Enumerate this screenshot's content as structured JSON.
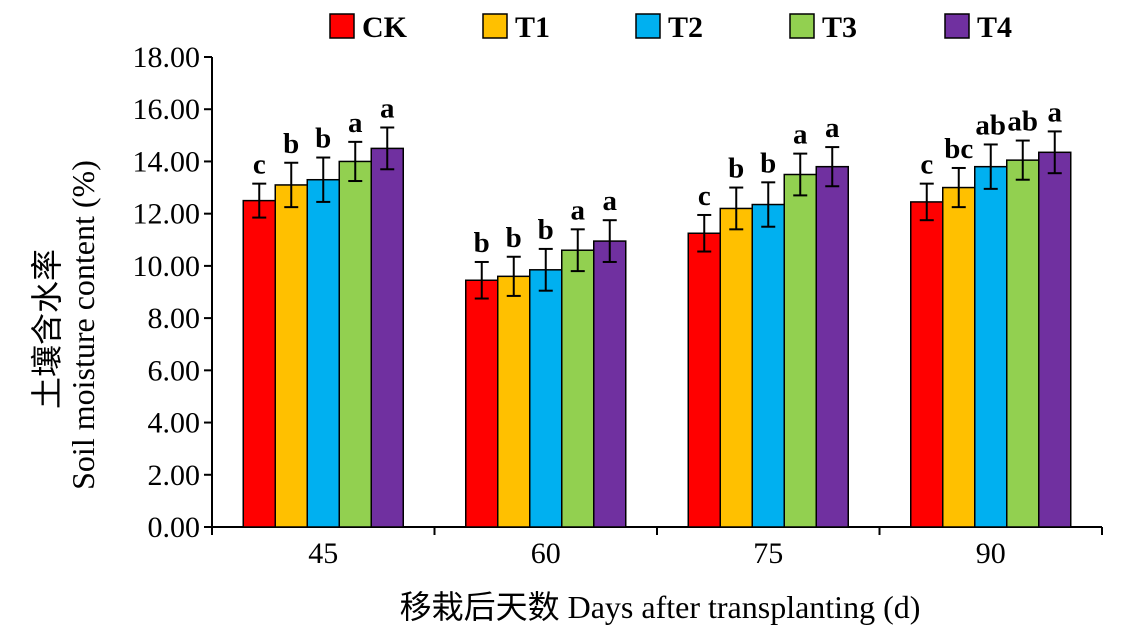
{
  "chart_data": {
    "type": "bar",
    "categories": [
      "45",
      "60",
      "75",
      "90"
    ],
    "series": [
      {
        "name": "CK",
        "color": "#ff0000",
        "values": [
          12.5,
          9.45,
          11.25,
          12.45
        ],
        "errors": [
          0.65,
          0.7,
          0.7,
          0.7
        ],
        "letters": [
          "c",
          "b",
          "c",
          "c"
        ]
      },
      {
        "name": "T1",
        "color": "#ffc000",
        "values": [
          13.1,
          9.6,
          12.2,
          13.0
        ],
        "errors": [
          0.85,
          0.75,
          0.8,
          0.75
        ],
        "letters": [
          "b",
          "b",
          "b",
          "bc"
        ]
      },
      {
        "name": "T2",
        "color": "#00b0f0",
        "values": [
          13.3,
          9.85,
          12.35,
          13.8
        ],
        "errors": [
          0.85,
          0.8,
          0.85,
          0.85
        ],
        "letters": [
          "b",
          "b",
          "b",
          "ab"
        ]
      },
      {
        "name": "T3",
        "color": "#92d050",
        "values": [
          14.0,
          10.6,
          13.5,
          14.05
        ],
        "errors": [
          0.75,
          0.8,
          0.8,
          0.75
        ],
        "letters": [
          "a",
          "a",
          "a",
          "ab"
        ]
      },
      {
        "name": "T4",
        "color": "#7030a0",
        "values": [
          14.5,
          10.95,
          13.8,
          14.35
        ],
        "errors": [
          0.8,
          0.8,
          0.75,
          0.8
        ],
        "letters": [
          "a",
          "a",
          "a",
          "a"
        ]
      }
    ],
    "xlabel": "移栽后天数 Days after transplanting (d)",
    "ylabel_cn": "土壤含水率",
    "ylabel": "Soil moisture content (%)",
    "ylim": [
      0,
      18
    ],
    "yticks": [
      "0.00",
      "2.00",
      "4.00",
      "6.00",
      "8.00",
      "10.00",
      "12.00",
      "14.00",
      "16.00",
      "18.00"
    ],
    "grid": false,
    "legend": "top"
  }
}
